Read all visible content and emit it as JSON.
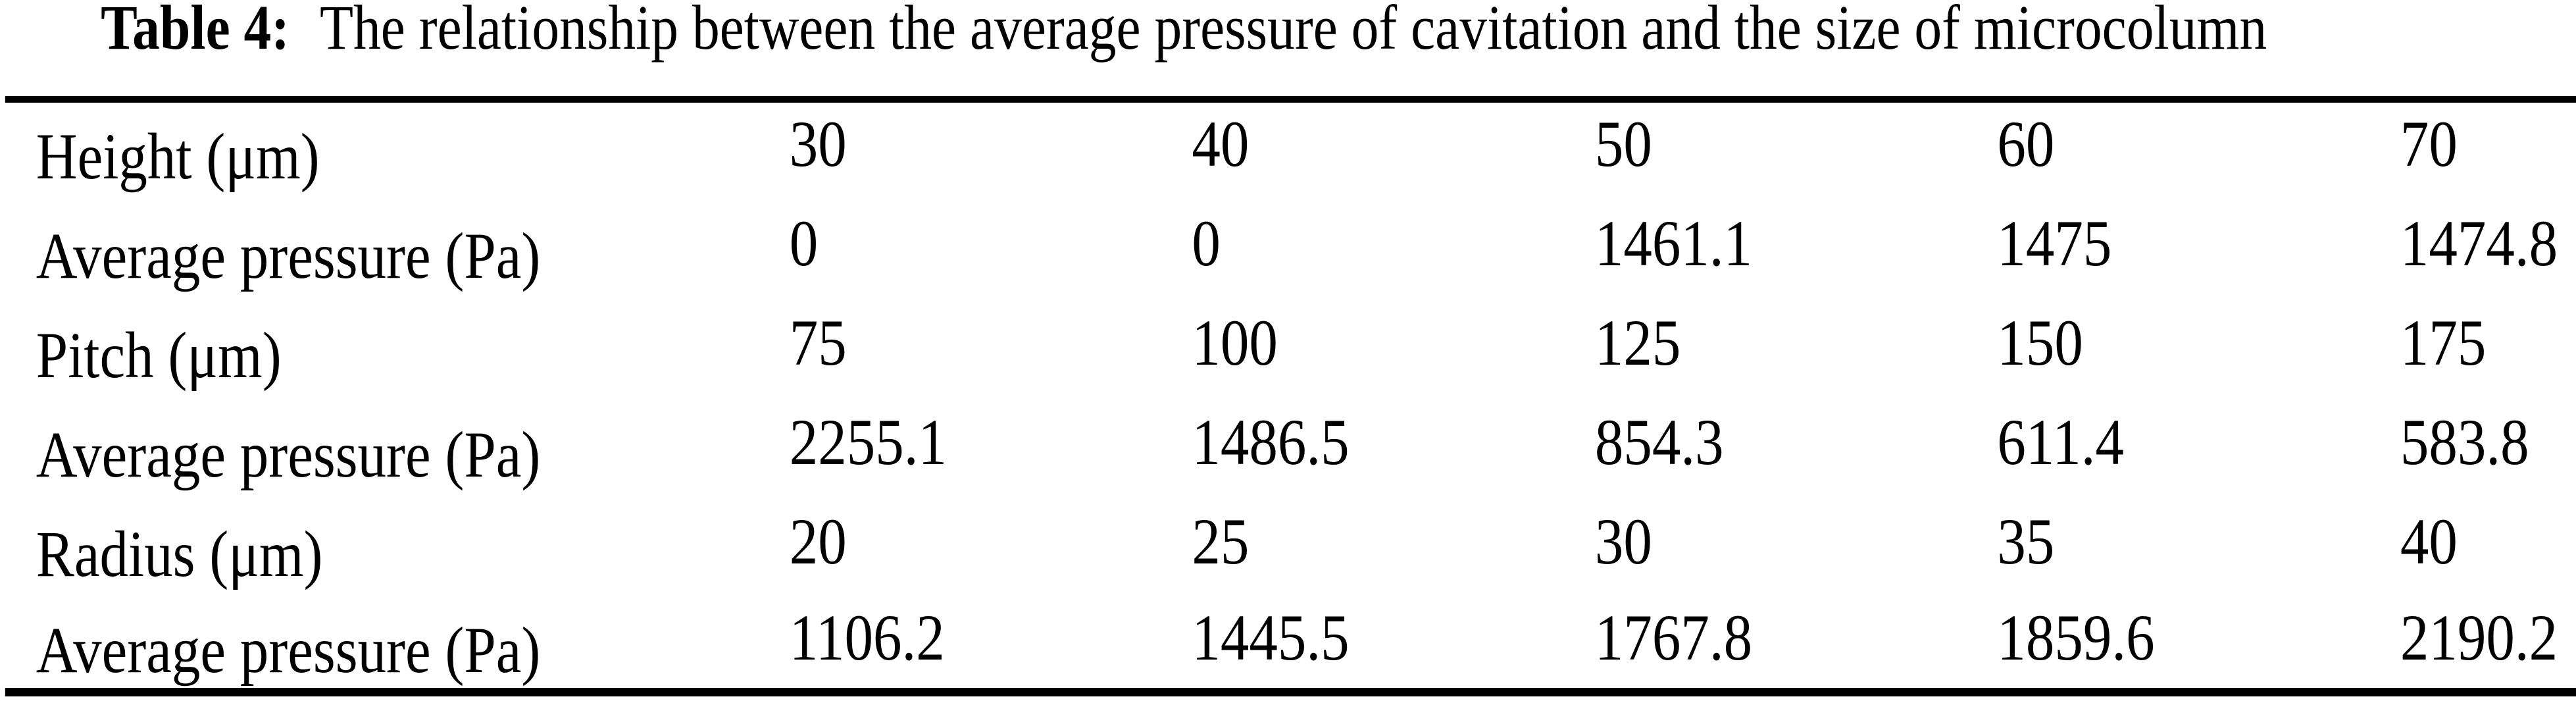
{
  "caption": {
    "label": "Table 4:",
    "text": "The relationship between the average pressure of cavitation and the size of microcolumn"
  },
  "colors": {
    "ink": "#000000",
    "background": "#ffffff"
  },
  "table": {
    "rows": [
      {
        "label": "Height (μm)",
        "values": [
          "30",
          "40",
          "50",
          "60",
          "70"
        ]
      },
      {
        "label": "Average pressure (Pa)",
        "values": [
          "0",
          "0",
          "1461.1",
          "1475",
          "1474.8"
        ]
      },
      {
        "label": "Pitch (μm)",
        "values": [
          "75",
          "100",
          "125",
          "150",
          "175"
        ]
      },
      {
        "label": "Average pressure (Pa)",
        "values": [
          "2255.1",
          "1486.5",
          "854.3",
          "611.4",
          "583.8"
        ]
      },
      {
        "label": "Radius (μm)",
        "values": [
          "20",
          "25",
          "30",
          "35",
          "40"
        ]
      },
      {
        "label": "Average pressure (Pa)",
        "values": [
          "1106.2",
          "1445.5",
          "1767.8",
          "1859.6",
          "2190.2"
        ]
      }
    ]
  },
  "chart_data": {
    "type": "table",
    "title": "Table 4: The relationship between the average pressure of cavitation and the size of microcolumn",
    "series": [
      {
        "name": "Height (μm)",
        "x": [
          30,
          40,
          50,
          60,
          70
        ],
        "average_pressure_Pa": [
          0,
          0,
          1461.1,
          1475,
          1474.8
        ]
      },
      {
        "name": "Pitch (μm)",
        "x": [
          75,
          100,
          125,
          150,
          175
        ],
        "average_pressure_Pa": [
          2255.1,
          1486.5,
          854.3,
          611.4,
          583.8
        ]
      },
      {
        "name": "Radius (μm)",
        "x": [
          20,
          25,
          30,
          35,
          40
        ],
        "average_pressure_Pa": [
          1106.2,
          1445.5,
          1767.8,
          1859.6,
          2190.2
        ]
      }
    ]
  }
}
